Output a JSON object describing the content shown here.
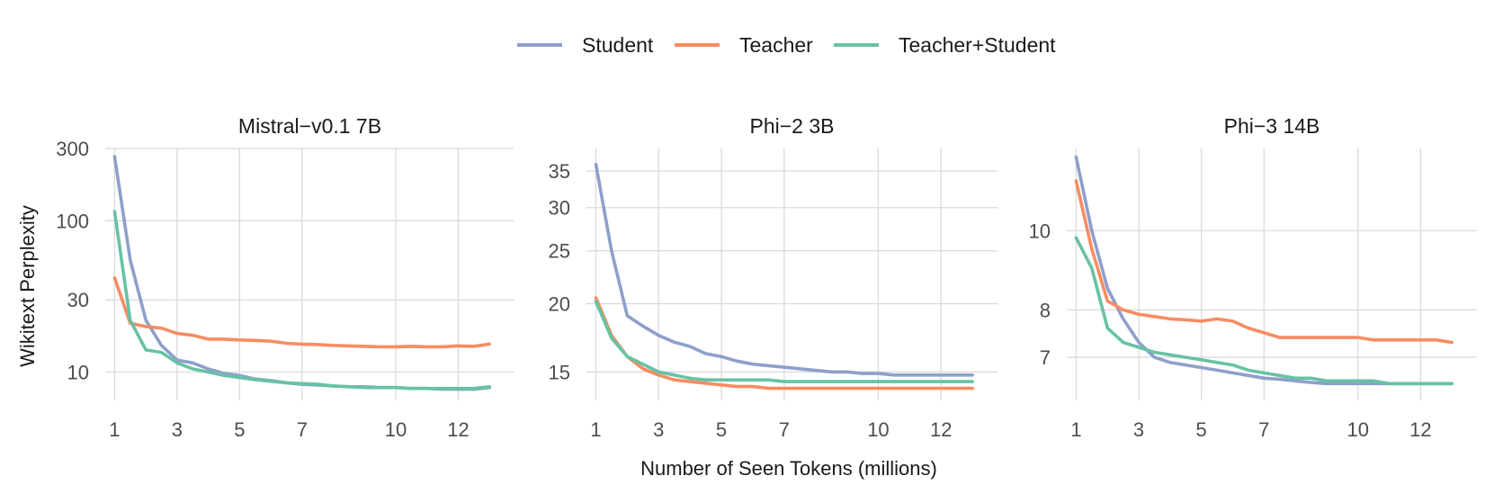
{
  "colors": {
    "Student": "#8e9fcb",
    "Teacher": "#f78c62",
    "Teacher+Student": "#67c2a4",
    "grid": "#dadada",
    "tick_text": "#4d4d4d",
    "title_text": "#1a1a1a"
  },
  "legend": {
    "placement": "top-center",
    "items": [
      "Student",
      "Teacher",
      "Teacher+Student"
    ]
  },
  "shared_xlabel": "Number of Seen Tokens (millions)",
  "shared_ylabel": "Wikitext Perplexity",
  "chart_data": [
    {
      "type": "line",
      "title": "Mistral−v0.1 7B",
      "yscale": "log",
      "xlim": [
        0.7,
        13.8
      ],
      "ylim": [
        6.5,
        300
      ],
      "xticks": [
        1,
        3,
        5,
        7,
        10,
        12
      ],
      "yticks": [
        10,
        30,
        100,
        300
      ],
      "grid": true,
      "series": [
        {
          "name": "Student",
          "x": [
            1,
            1.5,
            2,
            2.5,
            3,
            3.5,
            4,
            4.5,
            5,
            5.5,
            6,
            6.5,
            7,
            7.5,
            8,
            8.5,
            9,
            9.5,
            10,
            10.5,
            11,
            11.5,
            12,
            12.5,
            13
          ],
          "y": [
            265,
            55,
            22,
            15,
            12,
            11.5,
            10.5,
            9.8,
            9.5,
            9,
            8.8,
            8.5,
            8.3,
            8.2,
            8.1,
            8,
            8,
            7.9,
            7.9,
            7.8,
            7.8,
            7.7,
            7.7,
            7.7,
            7.9
          ]
        },
        {
          "name": "Teacher",
          "x": [
            1,
            1.5,
            2,
            2.5,
            3,
            3.5,
            4,
            4.5,
            5,
            5.5,
            6,
            6.5,
            7,
            7.5,
            8,
            8.5,
            9,
            9.5,
            10,
            10.5,
            11,
            11.5,
            12,
            12.5,
            13
          ],
          "y": [
            42,
            21,
            20,
            19.5,
            18,
            17.5,
            16.5,
            16.5,
            16.3,
            16.2,
            16,
            15.5,
            15.3,
            15.2,
            15,
            14.9,
            14.8,
            14.7,
            14.7,
            14.8,
            14.7,
            14.7,
            14.9,
            14.8,
            15.3
          ]
        },
        {
          "name": "Teacher+Student",
          "x": [
            1,
            1.5,
            2,
            2.5,
            3,
            3.5,
            4,
            4.5,
            5,
            5.5,
            6,
            6.5,
            7,
            7.5,
            8,
            8.5,
            9,
            9.5,
            10,
            10.5,
            11,
            11.5,
            12,
            12.5,
            13
          ],
          "y": [
            115,
            22,
            14,
            13.5,
            11.5,
            10.5,
            10,
            9.5,
            9.2,
            8.9,
            8.7,
            8.5,
            8.4,
            8.3,
            8.1,
            8,
            7.9,
            7.9,
            7.9,
            7.8,
            7.8,
            7.8,
            7.8,
            7.8,
            8
          ]
        }
      ]
    },
    {
      "type": "line",
      "title": "Phi−2 3B",
      "yscale": "log",
      "xlim": [
        0.7,
        13.8
      ],
      "ylim": [
        13.3,
        38.5
      ],
      "xticks": [
        1,
        3,
        5,
        7,
        10,
        12
      ],
      "yticks": [
        15,
        20,
        25,
        30,
        35
      ],
      "grid": true,
      "series": [
        {
          "name": "Student",
          "x": [
            1,
            1.5,
            2,
            2.5,
            3,
            3.5,
            4,
            4.5,
            5,
            5.5,
            6,
            6.5,
            7,
            7.5,
            8,
            8.5,
            9,
            9.5,
            10,
            10.5,
            11,
            11.5,
            12,
            12.5,
            13
          ],
          "y": [
            36,
            25,
            19,
            18.2,
            17.5,
            17,
            16.7,
            16.2,
            16,
            15.7,
            15.5,
            15.4,
            15.3,
            15.2,
            15.1,
            15,
            15,
            14.9,
            14.9,
            14.8,
            14.8,
            14.8,
            14.8,
            14.8,
            14.8
          ]
        },
        {
          "name": "Teacher",
          "x": [
            1,
            1.5,
            2,
            2.5,
            3,
            3.5,
            4,
            4.5,
            5,
            5.5,
            6,
            6.5,
            7,
            7.5,
            8,
            8.5,
            9,
            9.5,
            10,
            10.5,
            11,
            11.5,
            12,
            12.5,
            13
          ],
          "y": [
            20.5,
            17.5,
            16,
            15.2,
            14.8,
            14.5,
            14.4,
            14.3,
            14.2,
            14.1,
            14.1,
            14,
            14,
            14,
            14,
            14,
            14,
            14,
            14,
            14,
            14,
            14,
            14,
            14,
            14
          ]
        },
        {
          "name": "Teacher+Student",
          "x": [
            1,
            1.5,
            2,
            2.5,
            3,
            3.5,
            4,
            4.5,
            5,
            5.5,
            6,
            6.5,
            7,
            7.5,
            8,
            8.5,
            9,
            9.5,
            10,
            10.5,
            11,
            11.5,
            12,
            12.5,
            13
          ],
          "y": [
            20.2,
            17.3,
            16,
            15.5,
            15,
            14.8,
            14.6,
            14.5,
            14.5,
            14.5,
            14.5,
            14.5,
            14.4,
            14.4,
            14.4,
            14.4,
            14.4,
            14.4,
            14.4,
            14.4,
            14.4,
            14.4,
            14.4,
            14.4,
            14.4
          ]
        }
      ]
    },
    {
      "type": "line",
      "title": "Phi−3 14B",
      "yscale": "log",
      "xlim": [
        0.7,
        13.8
      ],
      "ylim": [
        6.2,
        12.6
      ],
      "xticks": [
        1,
        3,
        5,
        7,
        10,
        12
      ],
      "yticks": [
        7,
        8,
        10
      ],
      "grid": true,
      "series": [
        {
          "name": "Student",
          "x": [
            1,
            1.5,
            2,
            2.5,
            3,
            3.5,
            4,
            4.5,
            5,
            5.5,
            6,
            6.5,
            7,
            7.5,
            8,
            8.5,
            9,
            9.5,
            10,
            10.5,
            11,
            11.5,
            12,
            12.5,
            13
          ],
          "y": [
            12.3,
            10,
            8.5,
            7.8,
            7.3,
            7,
            6.9,
            6.85,
            6.8,
            6.75,
            6.7,
            6.65,
            6.6,
            6.58,
            6.55,
            6.52,
            6.5,
            6.5,
            6.5,
            6.5,
            6.5,
            6.5,
            6.5,
            6.5,
            6.5
          ]
        },
        {
          "name": "Teacher",
          "x": [
            1,
            1.5,
            2,
            2.5,
            3,
            3.5,
            4,
            4.5,
            5,
            5.5,
            6,
            6.5,
            7,
            7.5,
            8,
            8.5,
            9,
            9.5,
            10,
            10.5,
            11,
            11.5,
            12,
            12.5,
            13
          ],
          "y": [
            11.5,
            9.5,
            8.2,
            8,
            7.9,
            7.85,
            7.8,
            7.78,
            7.75,
            7.8,
            7.75,
            7.6,
            7.5,
            7.4,
            7.4,
            7.4,
            7.4,
            7.4,
            7.4,
            7.35,
            7.35,
            7.35,
            7.35,
            7.35,
            7.3
          ]
        },
        {
          "name": "Teacher+Student",
          "x": [
            1,
            1.5,
            2,
            2.5,
            3,
            3.5,
            4,
            4.5,
            5,
            5.5,
            6,
            6.5,
            7,
            7.5,
            8,
            8.5,
            9,
            9.5,
            10,
            10.5,
            11,
            11.5,
            12,
            12.5,
            13
          ],
          "y": [
            9.8,
            9,
            7.6,
            7.3,
            7.2,
            7.1,
            7.05,
            7,
            6.95,
            6.9,
            6.85,
            6.75,
            6.7,
            6.65,
            6.6,
            6.6,
            6.55,
            6.55,
            6.55,
            6.55,
            6.5,
            6.5,
            6.5,
            6.5,
            6.5
          ]
        }
      ]
    }
  ]
}
